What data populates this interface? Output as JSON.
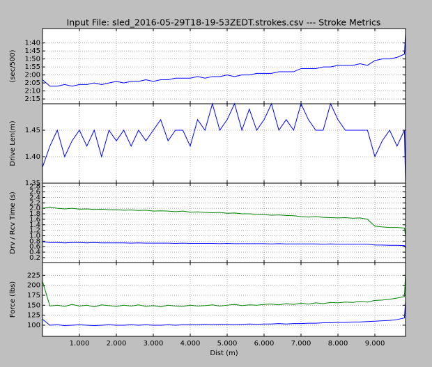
{
  "title": "Input File:  sled_2016-05-29T18-19-53ZEDT.strokes.csv --- Stroke Metrics",
  "chart_data": [
    {
      "type": "line",
      "ylabel": "(sec/500)",
      "xlim": [
        0,
        9830
      ],
      "ylim": [
        138,
        91
      ],
      "grid": true,
      "yticks": [
        {
          "value": 100,
          "label": "1:40"
        },
        {
          "value": 105,
          "label": "1:45"
        },
        {
          "value": 110,
          "label": "1:50"
        },
        {
          "value": 115,
          "label": "1:55"
        },
        {
          "value": 120,
          "label": "2:00"
        },
        {
          "value": 125,
          "label": "2:05"
        },
        {
          "value": 130,
          "label": "2:10"
        },
        {
          "value": 135,
          "label": "2:15"
        }
      ],
      "x": [
        0,
        200,
        400,
        600,
        800,
        1000,
        1200,
        1400,
        1600,
        1800,
        2000,
        2200,
        2400,
        2600,
        2800,
        3000,
        3200,
        3400,
        3600,
        3800,
        4000,
        4200,
        4400,
        4600,
        4800,
        5000,
        5200,
        5400,
        5600,
        5800,
        6000,
        6200,
        6400,
        6600,
        6800,
        7000,
        7200,
        7400,
        7600,
        7800,
        8000,
        8200,
        8400,
        8600,
        8800,
        9000,
        9200,
        9400,
        9600,
        9800,
        9830
      ],
      "series": [
        {
          "color": "#0000ff",
          "values": [
            123,
            127,
            127,
            126,
            127,
            126,
            126,
            125,
            126,
            125,
            124,
            125,
            124,
            124,
            123,
            124,
            123,
            123,
            122,
            122,
            122,
            121,
            122,
            121,
            121,
            120,
            121,
            120,
            120,
            119,
            119,
            119,
            118,
            118,
            118,
            116,
            116,
            116,
            115,
            115,
            114,
            114,
            114,
            113,
            114,
            111,
            110,
            110,
            109,
            107,
            94
          ]
        }
      ]
    },
    {
      "type": "line",
      "ylabel": "Drive Len(m)",
      "xlim": [
        0,
        9830
      ],
      "ylim": [
        1.35,
        1.5
      ],
      "grid": true,
      "yticks": [
        1.35,
        {
          "value": 1.4,
          "label": "1.40"
        },
        1.45
      ],
      "x": [
        0,
        200,
        400,
        600,
        800,
        1000,
        1200,
        1400,
        1600,
        1800,
        2000,
        2200,
        2400,
        2600,
        2800,
        3000,
        3200,
        3400,
        3600,
        3800,
        4000,
        4200,
        4400,
        4600,
        4800,
        5000,
        5200,
        5400,
        5600,
        5800,
        6000,
        6200,
        6400,
        6600,
        6800,
        7000,
        7200,
        7400,
        7600,
        7800,
        8000,
        8200,
        8400,
        8600,
        8800,
        9000,
        9200,
        9400,
        9600,
        9800,
        9830
      ],
      "series": [
        {
          "color": "#0000ff",
          "values": [
            1.38,
            1.42,
            1.45,
            1.4,
            1.43,
            1.45,
            1.42,
            1.45,
            1.4,
            1.45,
            1.43,
            1.45,
            1.42,
            1.45,
            1.43,
            1.45,
            1.47,
            1.43,
            1.45,
            1.45,
            1.42,
            1.47,
            1.45,
            1.5,
            1.45,
            1.47,
            1.5,
            1.45,
            1.49,
            1.45,
            1.47,
            1.5,
            1.45,
            1.47,
            1.45,
            1.5,
            1.47,
            1.45,
            1.45,
            1.5,
            1.47,
            1.45,
            1.45,
            1.45,
            1.45,
            1.4,
            1.43,
            1.45,
            1.42,
            1.45,
            1.35
          ]
        }
      ]
    },
    {
      "type": "line",
      "ylabel": "Drv / Rcv Time (s)",
      "xlim": [
        0,
        9830
      ],
      "ylim": [
        0.02,
        2.92
      ],
      "grid": true,
      "yticks": [
        0.2,
        0.4,
        0.6,
        0.8,
        {
          "value": 1,
          "label": "1.0"
        },
        1.2,
        1.4,
        1.6,
        1.8,
        {
          "value": 2,
          "label": "2.0"
        },
        2.2,
        2.4,
        2.6,
        2.8
      ],
      "x": [
        0,
        200,
        400,
        600,
        800,
        1000,
        1200,
        1400,
        1600,
        1800,
        2000,
        2200,
        2400,
        2600,
        2800,
        3000,
        3200,
        3400,
        3600,
        3800,
        4000,
        4200,
        4400,
        4600,
        4800,
        5000,
        5200,
        5400,
        5600,
        5800,
        6000,
        6200,
        6400,
        6600,
        6800,
        7000,
        7200,
        7400,
        7600,
        7800,
        8000,
        8200,
        8400,
        8600,
        8800,
        9000,
        9200,
        9400,
        9600,
        9800,
        9830
      ],
      "series": [
        {
          "color": "#008000",
          "values": [
            2.0,
            2.05,
            2.0,
            1.98,
            2.0,
            1.97,
            1.98,
            1.96,
            1.97,
            1.95,
            1.95,
            1.93,
            1.94,
            1.92,
            1.93,
            1.9,
            1.91,
            1.9,
            1.88,
            1.9,
            1.86,
            1.87,
            1.85,
            1.84,
            1.85,
            1.82,
            1.83,
            1.8,
            1.8,
            1.78,
            1.77,
            1.75,
            1.76,
            1.74,
            1.73,
            1.7,
            1.68,
            1.7,
            1.67,
            1.66,
            1.65,
            1.66,
            1.64,
            1.65,
            1.6,
            1.35,
            1.32,
            1.3,
            1.3,
            1.28,
            1.0
          ]
        },
        {
          "color": "#0000ff",
          "values": [
            0.78,
            0.75,
            0.75,
            0.74,
            0.75,
            0.75,
            0.74,
            0.75,
            0.74,
            0.74,
            0.74,
            0.74,
            0.73,
            0.74,
            0.73,
            0.73,
            0.73,
            0.73,
            0.72,
            0.73,
            0.72,
            0.72,
            0.72,
            0.72,
            0.71,
            0.72,
            0.71,
            0.71,
            0.71,
            0.71,
            0.71,
            0.7,
            0.71,
            0.7,
            0.7,
            0.7,
            0.7,
            0.7,
            0.69,
            0.7,
            0.69,
            0.69,
            0.69,
            0.69,
            0.69,
            0.66,
            0.66,
            0.65,
            0.65,
            0.64,
            0.55
          ]
        }
      ]
    },
    {
      "type": "line",
      "ylabel": "Force (lbs)",
      "xlabel": "Dist (m)",
      "xlim": [
        0,
        9830
      ],
      "ylim": [
        72,
        257
      ],
      "grid": true,
      "yticks": [
        100,
        125,
        150,
        175,
        200,
        225
      ],
      "xticks": [
        {
          "value": 1000,
          "label": "1.000"
        },
        {
          "value": 2000,
          "label": "2.000"
        },
        {
          "value": 3000,
          "label": "3.000"
        },
        {
          "value": 4000,
          "label": "4.000"
        },
        {
          "value": 5000,
          "label": "5.000"
        },
        {
          "value": 6000,
          "label": "6.000"
        },
        {
          "value": 7000,
          "label": "7.000"
        },
        {
          "value": 8000,
          "label": "8.000"
        },
        {
          "value": 9000,
          "label": "9.000"
        }
      ],
      "x": [
        0,
        200,
        400,
        600,
        800,
        1000,
        1200,
        1400,
        1600,
        1800,
        2000,
        2200,
        2400,
        2600,
        2800,
        3000,
        3200,
        3400,
        3600,
        3800,
        4000,
        4200,
        4400,
        4600,
        4800,
        5000,
        5200,
        5400,
        5600,
        5800,
        6000,
        6200,
        6400,
        6600,
        6800,
        7000,
        7200,
        7400,
        7600,
        7800,
        8000,
        8200,
        8400,
        8600,
        8800,
        9000,
        9200,
        9400,
        9600,
        9800,
        9830
      ],
      "series": [
        {
          "color": "#008000",
          "values": [
            210,
            148,
            150,
            147,
            152,
            148,
            150,
            146,
            151,
            149,
            147,
            150,
            148,
            151,
            147,
            149,
            146,
            150,
            148,
            147,
            150,
            148,
            149,
            151,
            148,
            150,
            152,
            149,
            151,
            150,
            152,
            153,
            151,
            154,
            152,
            155,
            153,
            156,
            154,
            157,
            156,
            158,
            157,
            160,
            158,
            162,
            163,
            165,
            168,
            172,
            230
          ]
        },
        {
          "color": "#0000ff",
          "values": [
            115,
            100,
            101,
            99,
            100,
            101,
            100,
            99,
            100,
            101,
            100,
            100,
            101,
            100,
            101,
            100,
            100,
            101,
            100,
            101,
            101,
            101,
            102,
            101,
            102,
            102,
            101,
            102,
            103,
            102,
            103,
            103,
            104,
            103,
            104,
            104,
            105,
            105,
            106,
            106,
            107,
            107,
            108,
            108,
            109,
            110,
            111,
            112,
            114,
            118,
            160
          ]
        }
      ]
    }
  ]
}
